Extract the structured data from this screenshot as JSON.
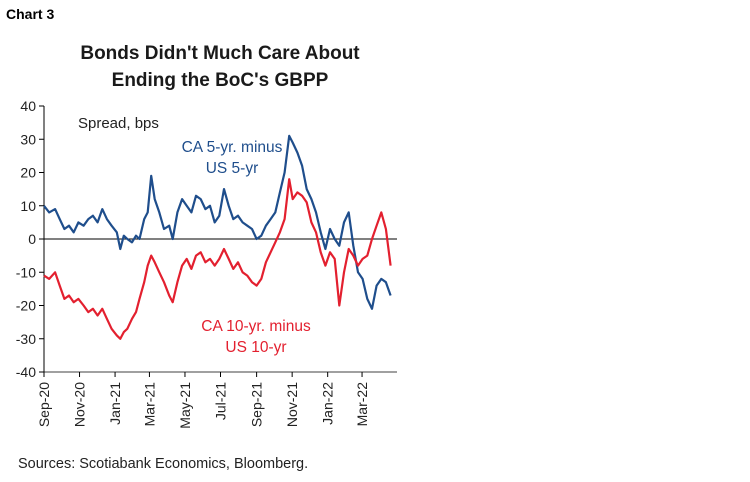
{
  "header": {
    "chart_number": "Chart 3"
  },
  "footer": {
    "source": "Sources: Scotiabank Economics, Bloomberg."
  },
  "colors": {
    "ca5": "#1f4e8c",
    "ca10": "#e3202f",
    "axis": "#000000"
  },
  "chart_data": {
    "type": "line",
    "title": "Bonds Didn't Much Care About Ending the BoC's GBPP",
    "title_lines": [
      "Bonds Didn't Much Care About",
      "Ending the BoC's GBPP"
    ],
    "ylabel": "Spread, bps",
    "ylim": [
      -40,
      40
    ],
    "yticks": [
      40,
      30,
      20,
      10,
      0,
      -10,
      -20,
      -30,
      -40
    ],
    "xlim": [
      "2020-09-01",
      "2022-04-30"
    ],
    "xticks": [
      "Sep-20",
      "Nov-20",
      "Jan-21",
      "Mar-21",
      "May-21",
      "Jul-21",
      "Sep-21",
      "Nov-21",
      "Jan-22",
      "Mar-22"
    ],
    "xtick_dates": [
      "2020-09-01",
      "2020-11-01",
      "2021-01-01",
      "2021-03-01",
      "2021-05-01",
      "2021-07-01",
      "2021-09-01",
      "2021-11-01",
      "2022-01-01",
      "2022-03-01"
    ],
    "grid": false,
    "series": [
      {
        "name": "CA 5-yr. minus US 5-yr",
        "label_lines": [
          "CA 5-yr. minus",
          "US 5-yr"
        ],
        "color": "#1f4e8c",
        "points": [
          [
            "2020-09-01",
            10
          ],
          [
            "2020-09-10",
            8
          ],
          [
            "2020-09-20",
            9
          ],
          [
            "2020-09-28",
            6
          ],
          [
            "2020-10-06",
            3
          ],
          [
            "2020-10-14",
            4
          ],
          [
            "2020-10-22",
            2
          ],
          [
            "2020-10-30",
            5
          ],
          [
            "2020-11-08",
            4
          ],
          [
            "2020-11-16",
            6
          ],
          [
            "2020-11-24",
            7
          ],
          [
            "2020-12-02",
            5
          ],
          [
            "2020-12-10",
            9
          ],
          [
            "2020-12-18",
            6
          ],
          [
            "2020-12-26",
            4
          ],
          [
            "2021-01-04",
            2
          ],
          [
            "2021-01-10",
            -3
          ],
          [
            "2021-01-16",
            1
          ],
          [
            "2021-01-22",
            0
          ],
          [
            "2021-01-30",
            -1
          ],
          [
            "2021-02-06",
            1
          ],
          [
            "2021-02-12",
            0
          ],
          [
            "2021-02-20",
            6
          ],
          [
            "2021-02-26",
            8
          ],
          [
            "2021-03-04",
            19
          ],
          [
            "2021-03-10",
            12
          ],
          [
            "2021-03-18",
            8
          ],
          [
            "2021-03-26",
            3
          ],
          [
            "2021-04-04",
            4
          ],
          [
            "2021-04-10",
            0
          ],
          [
            "2021-04-18",
            8
          ],
          [
            "2021-04-26",
            12
          ],
          [
            "2021-05-04",
            10
          ],
          [
            "2021-05-12",
            8
          ],
          [
            "2021-05-20",
            13
          ],
          [
            "2021-05-28",
            12
          ],
          [
            "2021-06-05",
            9
          ],
          [
            "2021-06-13",
            10
          ],
          [
            "2021-06-21",
            5
          ],
          [
            "2021-06-29",
            7
          ],
          [
            "2021-07-07",
            15
          ],
          [
            "2021-07-15",
            10
          ],
          [
            "2021-07-23",
            6
          ],
          [
            "2021-07-31",
            7
          ],
          [
            "2021-08-08",
            5
          ],
          [
            "2021-08-16",
            4
          ],
          [
            "2021-08-24",
            3
          ],
          [
            "2021-09-01",
            0
          ],
          [
            "2021-09-09",
            1
          ],
          [
            "2021-09-17",
            4
          ],
          [
            "2021-09-25",
            6
          ],
          [
            "2021-10-03",
            8
          ],
          [
            "2021-10-11",
            14
          ],
          [
            "2021-10-19",
            20
          ],
          [
            "2021-10-27",
            31
          ],
          [
            "2021-11-02",
            29
          ],
          [
            "2021-11-10",
            26
          ],
          [
            "2021-11-18",
            22
          ],
          [
            "2021-11-26",
            15
          ],
          [
            "2021-12-04",
            12
          ],
          [
            "2021-12-12",
            8
          ],
          [
            "2021-12-20",
            2
          ],
          [
            "2021-12-28",
            -3
          ],
          [
            "2022-01-05",
            3
          ],
          [
            "2022-01-13",
            0
          ],
          [
            "2022-01-21",
            -2
          ],
          [
            "2022-01-29",
            5
          ],
          [
            "2022-02-06",
            8
          ],
          [
            "2022-02-14",
            -2
          ],
          [
            "2022-02-22",
            -10
          ],
          [
            "2022-03-02",
            -12
          ],
          [
            "2022-03-10",
            -18
          ],
          [
            "2022-03-18",
            -21
          ],
          [
            "2022-03-26",
            -14
          ],
          [
            "2022-04-03",
            -12
          ],
          [
            "2022-04-11",
            -13
          ],
          [
            "2022-04-19",
            -17
          ]
        ]
      },
      {
        "name": "CA 10-yr. minus US 10-yr",
        "label_lines": [
          "CA 10-yr. minus",
          "US 10-yr"
        ],
        "color": "#e3202f",
        "points": [
          [
            "2020-09-01",
            -11
          ],
          [
            "2020-09-10",
            -12
          ],
          [
            "2020-09-20",
            -10
          ],
          [
            "2020-09-28",
            -14
          ],
          [
            "2020-10-06",
            -18
          ],
          [
            "2020-10-14",
            -17
          ],
          [
            "2020-10-22",
            -19
          ],
          [
            "2020-10-30",
            -18
          ],
          [
            "2020-11-08",
            -20
          ],
          [
            "2020-11-16",
            -22
          ],
          [
            "2020-11-24",
            -21
          ],
          [
            "2020-12-02",
            -23
          ],
          [
            "2020-12-10",
            -21
          ],
          [
            "2020-12-18",
            -24
          ],
          [
            "2020-12-26",
            -27
          ],
          [
            "2021-01-04",
            -29
          ],
          [
            "2021-01-10",
            -30
          ],
          [
            "2021-01-16",
            -28
          ],
          [
            "2021-01-22",
            -27
          ],
          [
            "2021-01-30",
            -24
          ],
          [
            "2021-02-06",
            -22
          ],
          [
            "2021-02-12",
            -18
          ],
          [
            "2021-02-20",
            -13
          ],
          [
            "2021-02-26",
            -8
          ],
          [
            "2021-03-04",
            -5
          ],
          [
            "2021-03-10",
            -7
          ],
          [
            "2021-03-18",
            -10
          ],
          [
            "2021-03-26",
            -13
          ],
          [
            "2021-04-04",
            -17
          ],
          [
            "2021-04-10",
            -19
          ],
          [
            "2021-04-18",
            -13
          ],
          [
            "2021-04-26",
            -8
          ],
          [
            "2021-05-04",
            -6
          ],
          [
            "2021-05-12",
            -9
          ],
          [
            "2021-05-20",
            -5
          ],
          [
            "2021-05-28",
            -4
          ],
          [
            "2021-06-05",
            -7
          ],
          [
            "2021-06-13",
            -6
          ],
          [
            "2021-06-21",
            -8
          ],
          [
            "2021-06-29",
            -6
          ],
          [
            "2021-07-07",
            -3
          ],
          [
            "2021-07-15",
            -6
          ],
          [
            "2021-07-23",
            -9
          ],
          [
            "2021-07-31",
            -7
          ],
          [
            "2021-08-08",
            -10
          ],
          [
            "2021-08-16",
            -11
          ],
          [
            "2021-08-24",
            -13
          ],
          [
            "2021-09-01",
            -14
          ],
          [
            "2021-09-09",
            -12
          ],
          [
            "2021-09-17",
            -7
          ],
          [
            "2021-09-25",
            -4
          ],
          [
            "2021-10-03",
            -1
          ],
          [
            "2021-10-11",
            2
          ],
          [
            "2021-10-19",
            6
          ],
          [
            "2021-10-27",
            18
          ],
          [
            "2021-11-02",
            12
          ],
          [
            "2021-11-10",
            14
          ],
          [
            "2021-11-18",
            13
          ],
          [
            "2021-11-26",
            11
          ],
          [
            "2021-12-04",
            5
          ],
          [
            "2021-12-12",
            2
          ],
          [
            "2021-12-20",
            -4
          ],
          [
            "2021-12-28",
            -8
          ],
          [
            "2022-01-05",
            -4
          ],
          [
            "2022-01-13",
            -6
          ],
          [
            "2022-01-21",
            -20
          ],
          [
            "2022-01-29",
            -10
          ],
          [
            "2022-02-06",
            -3
          ],
          [
            "2022-02-14",
            -5
          ],
          [
            "2022-02-22",
            -8
          ],
          [
            "2022-03-02",
            -6
          ],
          [
            "2022-03-10",
            -5
          ],
          [
            "2022-03-18",
            0
          ],
          [
            "2022-03-26",
            4
          ],
          [
            "2022-04-03",
            8
          ],
          [
            "2022-04-11",
            3
          ],
          [
            "2022-04-19",
            -8
          ]
        ]
      }
    ]
  }
}
